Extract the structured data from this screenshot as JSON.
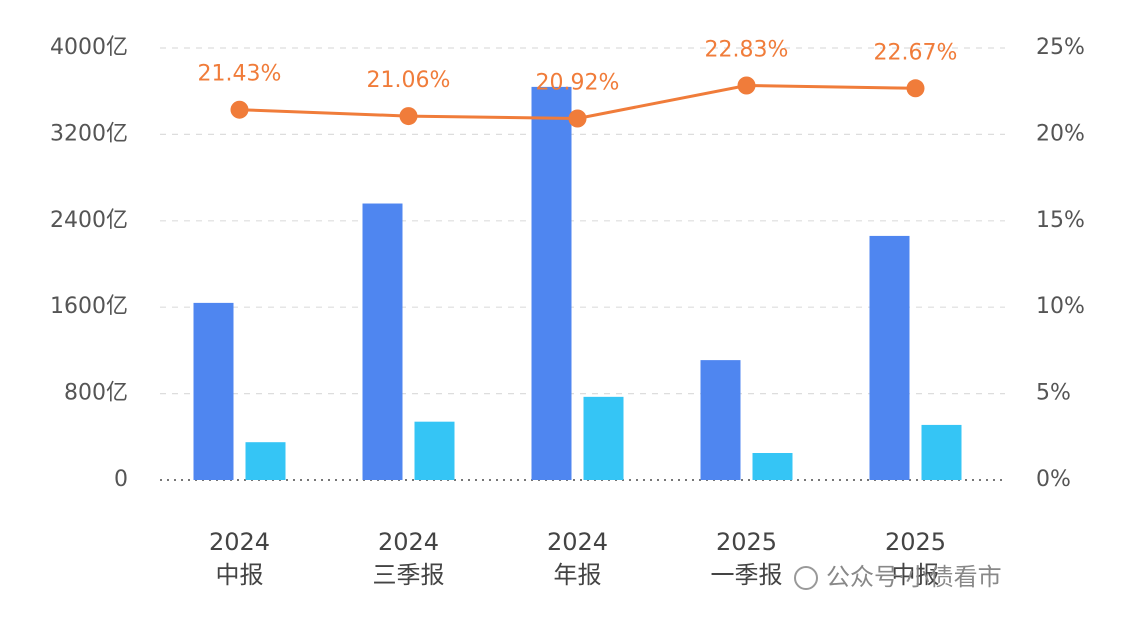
{
  "chart_data": {
    "type": "bar_line",
    "categories": [
      [
        "2024",
        "中报"
      ],
      [
        "2024",
        "三季报"
      ],
      [
        "2024",
        "年报"
      ],
      [
        "2025",
        "一季报"
      ],
      [
        "2025",
        "中报"
      ]
    ],
    "series": [
      {
        "type": "bar",
        "color": "#4f86f0",
        "values": [
          1640,
          2560,
          3640,
          1110,
          2260
        ]
      },
      {
        "type": "bar",
        "color": "#35c5f5",
        "values": [
          350,
          540,
          770,
          250,
          510
        ]
      },
      {
        "type": "line",
        "axis": "y2",
        "color": "#f07c3a",
        "values": [
          21.43,
          21.06,
          20.92,
          22.83,
          22.67
        ],
        "value_labels": [
          "21.43%",
          "21.06%",
          "20.92%",
          "22.83%",
          "22.67%"
        ]
      }
    ],
    "ylim": [
      0,
      4000
    ],
    "yticks": [
      {
        "value": 0,
        "label": "0"
      },
      {
        "value": 800,
        "label": "800亿"
      },
      {
        "value": 1600,
        "label": "1600亿"
      },
      {
        "value": 2400,
        "label": "2400亿"
      },
      {
        "value": 3200,
        "label": "3200亿"
      },
      {
        "value": 4000,
        "label": "4000亿"
      }
    ],
    "y2lim": [
      0,
      25
    ],
    "y2ticks": [
      {
        "value": 0,
        "label": "0%"
      },
      {
        "value": 5,
        "label": "5%"
      },
      {
        "value": 10,
        "label": "10%"
      },
      {
        "value": 15,
        "label": "15%"
      },
      {
        "value": 20,
        "label": "20%"
      },
      {
        "value": 25,
        "label": "25%"
      }
    ],
    "grid": true,
    "watermark": "公众号·小债看市"
  }
}
